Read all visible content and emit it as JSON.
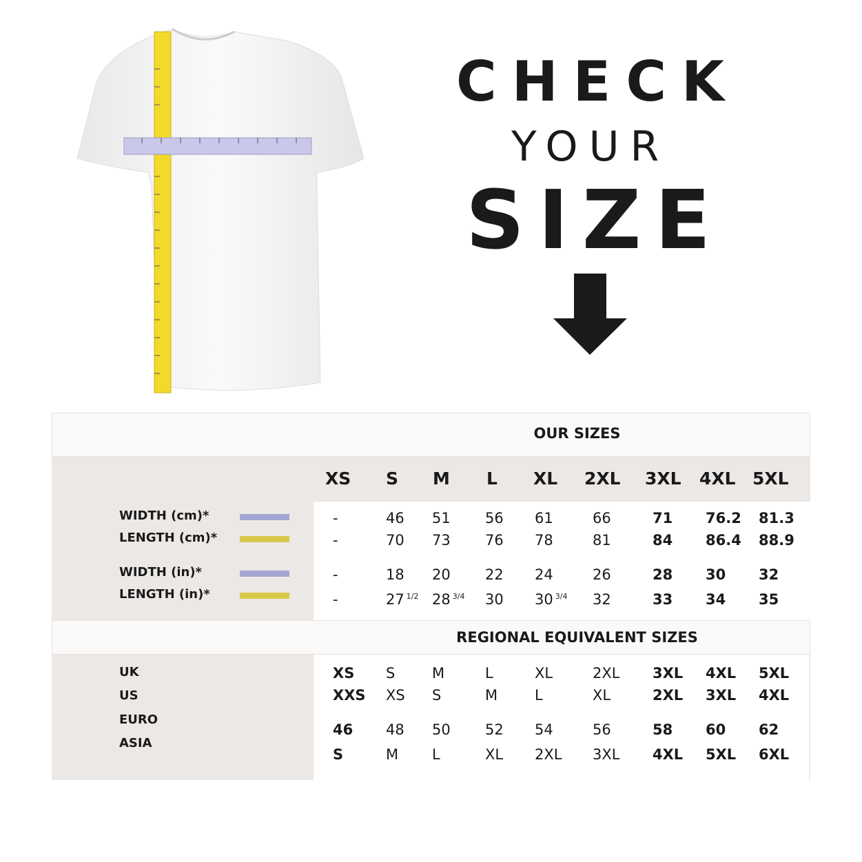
{
  "headline": {
    "line1": "CHECK",
    "line2": "YOUR",
    "line3": "SIZE"
  },
  "icons": {
    "arrow": "arrow-down-icon",
    "shirt": "t-shirt-with-tape-measures"
  },
  "colors": {
    "width_swatch": "#a3a6d2",
    "length_swatch": "#d9c94a",
    "gray_band": "#ece8e6"
  },
  "table": {
    "our_sizes_title": "OUR SIZES",
    "sizes": [
      "XS",
      "S",
      "M",
      "L",
      "XL",
      "2XL",
      "3XL",
      "4XL",
      "5XL"
    ],
    "measurements": [
      {
        "label": "WIDTH (cm)*",
        "swatch": "width",
        "values": [
          "-",
          "46",
          "51",
          "56",
          "61",
          "66",
          "71",
          "76.2",
          "81.3"
        ]
      },
      {
        "label": "LENGTH (cm)*",
        "swatch": "length",
        "values": [
          "-",
          "70",
          "73",
          "76",
          "78",
          "81",
          "84",
          "86.4",
          "88.9"
        ]
      },
      {
        "label": "WIDTH (in)*",
        "swatch": "width",
        "values": [
          "-",
          "18",
          "20",
          "22",
          "24",
          "26",
          "28",
          "30",
          "32"
        ]
      },
      {
        "label": "LENGTH (in)*",
        "swatch": "length",
        "values": [
          "-",
          "27 1/2",
          "28 3/4",
          "30",
          "30 3/4",
          "32",
          "33",
          "34",
          "35"
        ]
      }
    ],
    "regional_title": "REGIONAL EQUIVALENT SIZES",
    "regional_labels": [
      "UK",
      "US",
      "EURO",
      "ASIA"
    ],
    "regional_rows": [
      [
        "XS",
        "S",
        "M",
        "L",
        "XL",
        "2XL",
        "3XL",
        "4XL",
        "5XL"
      ],
      [
        "XXS",
        "XS",
        "S",
        "M",
        "L",
        "XL",
        "2XL",
        "3XL",
        "4XL"
      ],
      [
        "46",
        "48",
        "50",
        "52",
        "54",
        "56",
        "58",
        "60",
        "62"
      ],
      [
        "S",
        "M",
        "L",
        "XL",
        "2XL",
        "3XL",
        "4XL",
        "5XL",
        "6XL"
      ]
    ]
  }
}
